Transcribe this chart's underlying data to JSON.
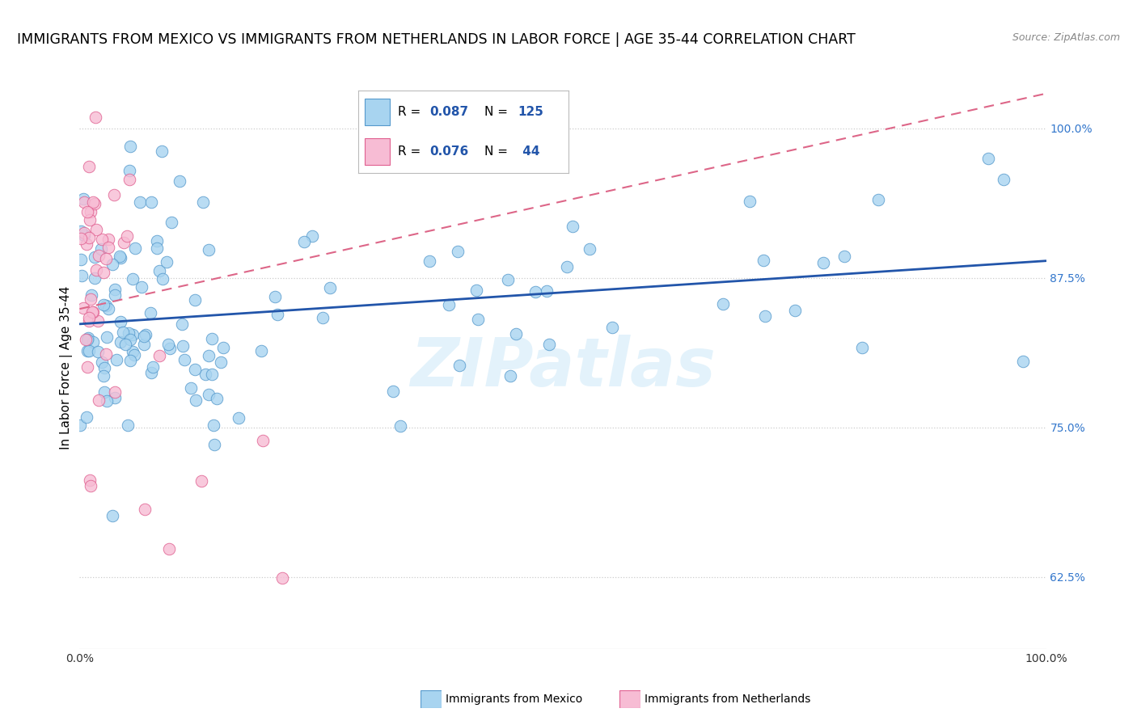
{
  "title": "IMMIGRANTS FROM MEXICO VS IMMIGRANTS FROM NETHERLANDS IN LABOR FORCE | AGE 35-44 CORRELATION CHART",
  "source": "Source: ZipAtlas.com",
  "ylabel": "In Labor Force | Age 35-44",
  "yticks": [
    0.625,
    0.75,
    0.875,
    1.0
  ],
  "ytick_labels": [
    "62.5%",
    "75.0%",
    "87.5%",
    "100.0%"
  ],
  "blue_color": "#a8d4f0",
  "blue_edge_color": "#5599cc",
  "pink_color": "#f7bcd4",
  "pink_edge_color": "#e06090",
  "trend_blue_color": "#2255aa",
  "trend_pink_color": "#dd6688",
  "title_fontsize": 12.5,
  "source_fontsize": 9,
  "tick_fontsize": 10,
  "ylabel_fontsize": 11,
  "legend_fontsize": 11,
  "watermark": "ZIPatlas",
  "xlim": [
    0.0,
    1.0
  ],
  "ylim": [
    0.565,
    1.035
  ],
  "legend_blue_r": "0.087",
  "legend_blue_n": "125",
  "legend_pink_r": "0.076",
  "legend_pink_n": " 44",
  "bottom_label_blue": "Immigrants from Mexico",
  "bottom_label_pink": "Immigrants from Netherlands"
}
